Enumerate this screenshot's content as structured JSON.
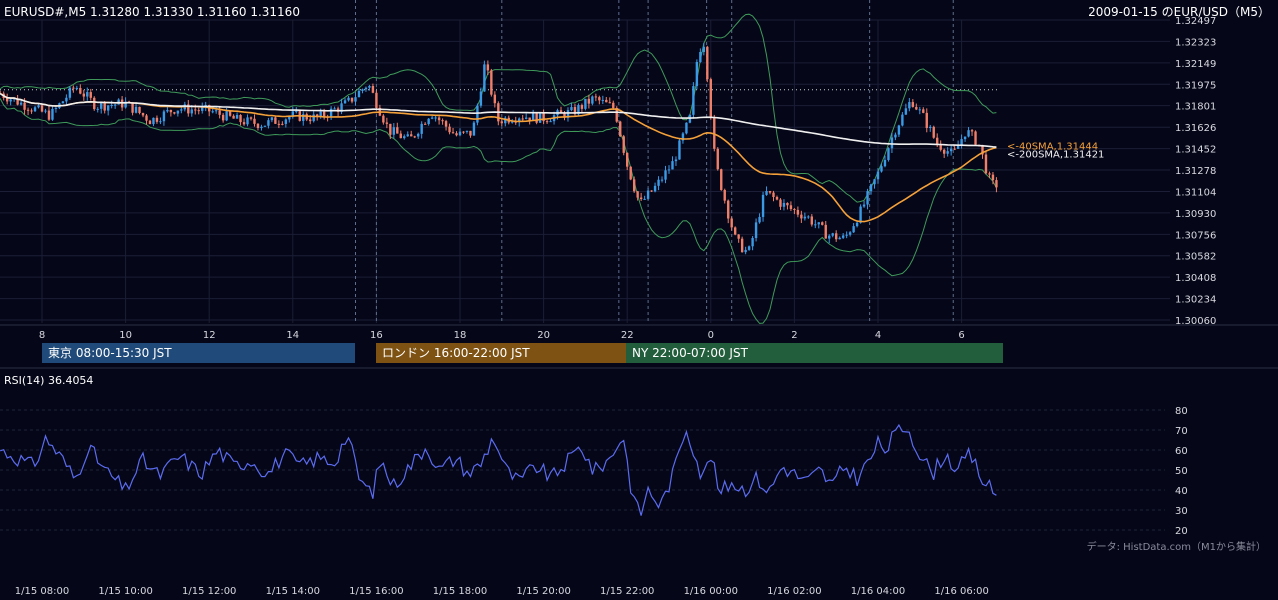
{
  "header": {
    "symbol_info": "EURUSD#,M5 1.31280 1.31330 1.31160 1.31160",
    "chart_title": "2009-01-15 のEUR/USD（M5）"
  },
  "sessions": [
    {
      "label": "東京 08:00-15:30 JST",
      "color": "#1f4a7a"
    },
    {
      "label": "ロンドン 16:00-22:00 JST",
      "color": "#7d5213"
    },
    {
      "label": "NY 22:00-07:00 JST",
      "color": "#235e3c"
    }
  ],
  "credit": "データ: HistData.com（M1から集計）",
  "chart_data": [
    {
      "type": "candlestick",
      "ylim": [
        1.3006,
        1.32497
      ],
      "y_ticks": [
        "1.32497",
        "1.32323",
        "1.32149",
        "1.31975",
        "1.31801",
        "1.31626",
        "1.31452",
        "1.31278",
        "1.31104",
        "1.30930",
        "1.30756",
        "1.30582",
        "1.30408",
        "1.30234",
        "1.30060"
      ],
      "x_ticks": [
        "8",
        "10",
        "12",
        "14",
        "16",
        "18",
        "20",
        "22",
        "0",
        "2",
        "4",
        "6"
      ],
      "x_tick_hours": [
        8,
        10,
        12,
        14,
        16,
        18,
        20,
        22,
        24,
        26,
        28,
        30
      ],
      "x_range_hours": [
        7.0,
        30.85
      ],
      "ma_labels": [
        {
          "text": "<-40SMA,1.31444",
          "value": 1.31444,
          "color": "#f5a13a"
        },
        {
          "text": "<-200SMA,1.31421",
          "value": 1.31421,
          "color": "#f0f0f0"
        }
      ],
      "reference_level": 1.3193,
      "session_vlines_hours": [
        15.5,
        16,
        19,
        21.8,
        22.5,
        23.9,
        24.5,
        27.8,
        29.8
      ],
      "path_hours": [
        7.0,
        7.5,
        8.2,
        8.8,
        9.3,
        10.0,
        10.6,
        11.2,
        12.0,
        12.7,
        13.3,
        14.0,
        14.6,
        15.3,
        15.8,
        16.3,
        16.8,
        17.3,
        17.9,
        18.3,
        18.6,
        18.9,
        19.4,
        20.0,
        20.7,
        21.2,
        21.7,
        22.0,
        22.3,
        22.7,
        23.1,
        23.5,
        23.7,
        23.85,
        24.1,
        24.4,
        24.6,
        24.9,
        25.3,
        25.8,
        26.3,
        26.8,
        27.2,
        27.6,
        28.0,
        28.4,
        28.8,
        29.1,
        29.4,
        29.8,
        30.1,
        30.4,
        30.7
      ],
      "path_close": [
        1.319,
        1.3182,
        1.3172,
        1.3196,
        1.318,
        1.3182,
        1.3168,
        1.3178,
        1.3176,
        1.3168,
        1.3165,
        1.3172,
        1.317,
        1.3182,
        1.3198,
        1.316,
        1.3152,
        1.3175,
        1.3156,
        1.3158,
        1.3215,
        1.3168,
        1.3172,
        1.317,
        1.3175,
        1.3186,
        1.3178,
        1.3132,
        1.31,
        1.3115,
        1.3134,
        1.317,
        1.3225,
        1.3232,
        1.3135,
        1.3095,
        1.307,
        1.306,
        1.311,
        1.3098,
        1.309,
        1.3075,
        1.3072,
        1.3095,
        1.3125,
        1.316,
        1.3185,
        1.317,
        1.315,
        1.314,
        1.316,
        1.315,
        1.3116
      ],
      "candle_hours": [
        7.0,
        30.85
      ],
      "rsi": {
        "label": "RSI(14) 36.4054",
        "ylim": [
          15,
          85
        ],
        "y_ticks": [
          80,
          70,
          60,
          50,
          40,
          30,
          20
        ],
        "path_hours": [
          7.0,
          7.4,
          7.8,
          8.1,
          8.5,
          8.8,
          9.1,
          9.5,
          10.0,
          10.4,
          10.8,
          11.3,
          11.8,
          12.2,
          12.6,
          13.0,
          13.4,
          13.8,
          14.2,
          14.6,
          15.0,
          15.3,
          15.6,
          15.9,
          16.1,
          16.4,
          16.8,
          17.2,
          17.5,
          17.9,
          18.2,
          18.5,
          18.8,
          19.1,
          19.4,
          19.8,
          20.2,
          20.6,
          20.9,
          21.2,
          21.6,
          21.9,
          22.1,
          22.3,
          22.5,
          22.8,
          23.1,
          23.4,
          23.6,
          23.8,
          24.0,
          24.2,
          24.5,
          24.8,
          25.1,
          25.4,
          25.7,
          26.0,
          26.3,
          26.6,
          26.9,
          27.2,
          27.5,
          27.8,
          28.0,
          28.2,
          28.4,
          28.7,
          29.0,
          29.3,
          29.6,
          29.9,
          30.2,
          30.5,
          30.85
        ],
        "path_values": [
          60,
          56,
          52,
          66,
          55,
          45,
          62,
          50,
          40,
          55,
          47,
          57,
          48,
          60,
          52,
          55,
          48,
          58,
          52,
          56,
          54,
          68,
          45,
          38,
          55,
          42,
          52,
          62,
          50,
          56,
          48,
          53,
          67,
          50,
          44,
          52,
          46,
          55,
          62,
          49,
          56,
          68,
          40,
          27,
          40,
          32,
          48,
          72,
          60,
          45,
          58,
          38,
          44,
          40,
          46,
          39,
          52,
          48,
          44,
          50,
          42,
          52,
          46,
          55,
          63,
          60,
          68,
          72,
          58,
          48,
          58,
          50,
          58,
          45,
          37
        ]
      },
      "time_labels": [
        "1/15 08:00",
        "1/15 10:00",
        "1/15 12:00",
        "1/15 14:00",
        "1/15 16:00",
        "1/15 18:00",
        "1/15 20:00",
        "1/15 22:00",
        "1/16 00:00",
        "1/16 02:00",
        "1/16 04:00",
        "1/16 06:00"
      ]
    }
  ]
}
